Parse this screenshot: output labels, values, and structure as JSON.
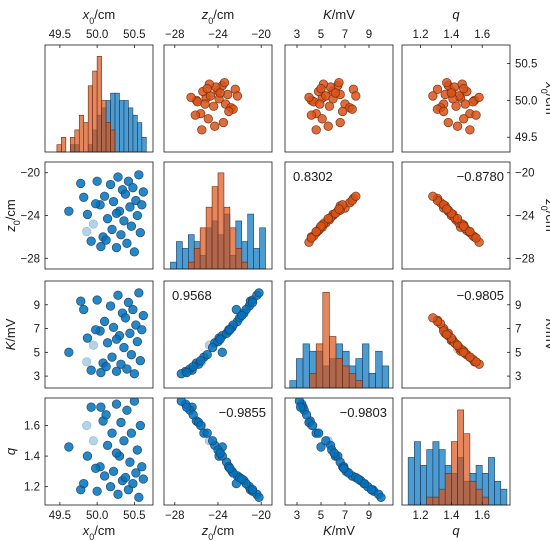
{
  "chart_data": {
    "type": "scatter-matrix",
    "variables": [
      {
        "key": "x0",
        "label": "x",
        "sub": "0",
        "unit": "/cm",
        "range": [
          49.3,
          50.75
        ],
        "ticks": [
          49.5,
          50.0,
          50.5
        ],
        "tick_labels": [
          "49.5",
          "50.0",
          "50.5"
        ]
      },
      {
        "key": "z0",
        "label": "z",
        "sub": "0",
        "unit": "/cm",
        "range": [
          -29,
          -19
        ],
        "ticks": [
          -28,
          -24,
          -20
        ],
        "tick_labels": [
          "−28",
          "−24",
          "−20"
        ]
      },
      {
        "key": "K",
        "label": "K",
        "sub": "",
        "unit": "/mV",
        "range": [
          2,
          11
        ],
        "ticks": [
          3,
          5,
          7,
          9
        ],
        "tick_labels": [
          "3",
          "5",
          "7",
          "9"
        ]
      },
      {
        "key": "q",
        "label": "q",
        "sub": "",
        "unit": "",
        "range": [
          1.08,
          1.78
        ],
        "ticks": [
          1.2,
          1.4,
          1.6
        ],
        "tick_labels": [
          "1.2",
          "1.4",
          "1.6"
        ]
      }
    ],
    "correlations": {
      "z0_K": "0.8302",
      "z0_q": "−0.8780",
      "K_q": "−0.9805",
      "K_z0": "0.9568",
      "q_z0": "−0.9855",
      "q_K": "−0.9803"
    },
    "series": [
      {
        "name": "",
        "color": "#0072BD",
        "edge": "#1d3f63",
        "panel": "lower",
        "points": [
          [
            49.62,
            -23.6,
            5.0,
            1.46,
            0
          ],
          [
            49.78,
            -21.0,
            9.3,
            1.18,
            0
          ],
          [
            49.82,
            -22.3,
            8.6,
            1.22,
            0
          ],
          [
            49.86,
            -25.5,
            4.2,
            1.6,
            1
          ],
          [
            49.87,
            -23.9,
            6.2,
            1.4,
            0
          ],
          [
            49.92,
            -26.4,
            3.5,
            1.72,
            0
          ],
          [
            49.95,
            -24.8,
            5.6,
            1.5,
            1
          ],
          [
            50.0,
            -20.8,
            9.4,
            1.17,
            0
          ],
          [
            50.04,
            -23.0,
            6.8,
            1.33,
            0
          ],
          [
            50.08,
            -26.0,
            4.1,
            1.63,
            0
          ],
          [
            50.1,
            -22.2,
            7.6,
            1.27,
            0
          ],
          [
            50.14,
            -24.3,
            5.8,
            1.47,
            0
          ],
          [
            50.18,
            -21.1,
            8.9,
            1.2,
            0
          ],
          [
            50.2,
            -25.3,
            4.6,
            1.55,
            0
          ],
          [
            50.22,
            -22.7,
            7.1,
            1.3,
            0
          ],
          [
            50.26,
            -27.0,
            3.4,
            1.74,
            0
          ],
          [
            50.28,
            -20.4,
            9.8,
            1.15,
            0
          ],
          [
            50.3,
            -23.6,
            6.4,
            1.4,
            0
          ],
          [
            50.32,
            -25.8,
            4.0,
            1.62,
            0
          ],
          [
            50.34,
            -21.6,
            8.3,
            1.24,
            0
          ],
          [
            50.36,
            -24.5,
            5.4,
            1.5,
            0
          ],
          [
            50.38,
            -22.0,
            7.9,
            1.26,
            0
          ],
          [
            50.4,
            -26.6,
            3.6,
            1.7,
            0
          ],
          [
            50.42,
            -20.8,
            9.2,
            1.18,
            0
          ],
          [
            50.44,
            -23.2,
            6.6,
            1.36,
            0
          ],
          [
            50.46,
            -25.0,
            4.8,
            1.55,
            0
          ],
          [
            50.48,
            -21.4,
            8.6,
            1.22,
            0
          ],
          [
            50.5,
            -27.4,
            3.2,
            1.76,
            0
          ],
          [
            50.52,
            -22.6,
            7.3,
            1.29,
            0
          ],
          [
            50.54,
            -24.0,
            5.9,
            1.44,
            0
          ],
          [
            50.56,
            -20.2,
            10.0,
            1.13,
            0
          ],
          [
            50.58,
            -25.6,
            4.3,
            1.6,
            0
          ],
          [
            50.6,
            -23.0,
            6.9,
            1.33,
            0
          ],
          [
            50.62,
            -21.8,
            8.1,
            1.25,
            0
          ],
          [
            50.05,
            -26.9,
            3.3,
            1.72,
            0
          ],
          [
            49.98,
            -22.9,
            6.9,
            1.32,
            0
          ],
          [
            50.26,
            -23.8,
            6.1,
            1.42,
            0
          ],
          [
            50.12,
            -26.3,
            3.8,
            1.67,
            0
          ]
        ]
      },
      {
        "name": "",
        "color": "#D95319",
        "edge": "#6b2a0c",
        "panel": "upper",
        "points": [
          [
            50.1,
            -24.6,
            5.3,
            1.44,
            1
          ],
          [
            49.95,
            -23.3,
            7.0,
            1.35,
            0
          ],
          [
            50.03,
            -25.1,
            5.1,
            1.46,
            0
          ],
          [
            49.9,
            -22.8,
            7.4,
            1.33,
            0
          ],
          [
            50.13,
            -24.0,
            6.0,
            1.4,
            0
          ],
          [
            50.0,
            -26.0,
            4.2,
            1.55,
            0
          ],
          [
            50.2,
            -23.6,
            6.4,
            1.38,
            0
          ],
          [
            50.06,
            -24.7,
            5.4,
            1.45,
            0
          ],
          [
            49.82,
            -25.6,
            4.6,
            1.52,
            0
          ],
          [
            50.15,
            -22.4,
            7.7,
            1.31,
            0
          ],
          [
            50.02,
            -23.9,
            6.0,
            1.41,
            0
          ],
          [
            49.92,
            -24.4,
            5.7,
            1.43,
            0
          ],
          [
            50.12,
            -25.4,
            4.8,
            1.5,
            0
          ],
          [
            49.75,
            -24.9,
            5.1,
            1.48,
            0
          ],
          [
            50.08,
            -23.1,
            6.6,
            1.36,
            0
          ],
          [
            49.98,
            -25.9,
            4.4,
            1.54,
            0
          ],
          [
            50.18,
            -24.2,
            5.8,
            1.42,
            0
          ],
          [
            49.7,
            -23.5,
            6.6,
            1.38,
            0
          ],
          [
            50.04,
            -26.5,
            4.0,
            1.58,
            0
          ],
          [
            49.88,
            -22.6,
            7.6,
            1.31,
            0
          ],
          [
            50.22,
            -24.8,
            5.2,
            1.47,
            0
          ],
          [
            49.95,
            -25.2,
            4.9,
            1.49,
            0
          ],
          [
            50.1,
            -23.8,
            6.2,
            1.4,
            0
          ],
          [
            49.65,
            -24.3,
            5.6,
            1.44,
            0
          ],
          [
            50.06,
            -22.2,
            7.9,
            1.28,
            0
          ],
          [
            49.8,
            -26.1,
            4.2,
            1.56,
            0
          ],
          [
            50.16,
            -25.0,
            5.0,
            1.48,
            0
          ],
          [
            49.85,
            -23.0,
            6.8,
            1.35,
            0
          ],
          [
            50.24,
            -23.4,
            6.5,
            1.37,
            0
          ],
          [
            49.6,
            -25.5,
            4.6,
            1.52,
            0
          ]
        ]
      }
    ],
    "histograms": {
      "x0": {
        "bins": [
          49.4,
          49.46,
          49.52,
          49.58,
          49.64,
          49.7,
          49.76,
          49.82,
          49.88,
          49.94,
          50.0,
          50.06,
          50.12,
          50.18,
          50.24,
          50.3,
          50.36,
          50.42,
          50.48,
          50.54,
          50.6,
          50.66
        ],
        "orange": [
          0,
          1,
          2,
          0,
          2,
          3,
          5,
          4,
          9,
          11,
          13,
          7,
          4,
          3,
          0,
          0,
          0,
          0,
          0,
          0,
          0
        ],
        "blue": [
          0,
          0,
          0,
          0,
          1,
          1,
          0,
          0,
          1,
          3,
          5,
          6,
          7,
          8,
          8,
          7,
          7,
          6,
          5,
          4,
          2
        ],
        "max": 14
      },
      "z0": {
        "bins": [
          -28.4,
          -27.85,
          -27.3,
          -26.75,
          -26.2,
          -25.65,
          -25.1,
          -24.55,
          -24.0,
          -23.45,
          -22.9,
          -22.35,
          -21.8,
          -21.25,
          -20.7,
          -20.15,
          -19.6
        ],
        "orange": [
          0,
          0,
          0,
          1,
          3,
          6,
          9,
          12,
          14,
          9,
          6,
          3,
          1,
          0,
          0,
          0
        ],
        "blue": [
          1,
          4,
          3,
          5,
          4,
          2,
          6,
          7,
          5,
          8,
          2,
          7,
          4,
          8,
          3,
          6
        ],
        "max": 15
      },
      "K": {
        "bins": [
          2.4,
          2.95,
          3.5,
          4.05,
          4.6,
          5.15,
          5.7,
          6.25,
          6.8,
          7.35,
          7.9,
          8.45,
          9.0,
          9.55,
          10.1,
          10.65
        ],
        "orange": [
          0,
          0,
          0,
          2,
          6,
          13,
          7,
          4,
          3,
          2,
          1,
          0,
          0,
          0,
          0
        ],
        "blue": [
          1,
          4,
          6,
          5,
          5,
          3,
          4,
          6,
          5,
          3,
          4,
          6,
          2,
          5,
          3
        ],
        "max": 14
      },
      "q": {
        "bins": [
          1.12,
          1.16,
          1.2,
          1.24,
          1.28,
          1.32,
          1.36,
          1.4,
          1.44,
          1.48,
          1.52,
          1.56,
          1.6,
          1.64,
          1.68,
          1.72,
          1.76
        ],
        "orange": [
          0,
          0,
          0,
          1,
          1,
          2,
          4,
          8,
          12,
          9,
          3,
          2,
          1,
          0,
          0,
          0
        ],
        "blue": [
          6,
          8,
          5,
          7,
          8,
          7,
          5,
          4,
          6,
          3,
          4,
          5,
          4,
          6,
          3,
          2
        ],
        "max": 13
      }
    },
    "colors": {
      "blue": "#0072BD",
      "orange": "#D95319",
      "axis": "#1a1a1a"
    }
  }
}
